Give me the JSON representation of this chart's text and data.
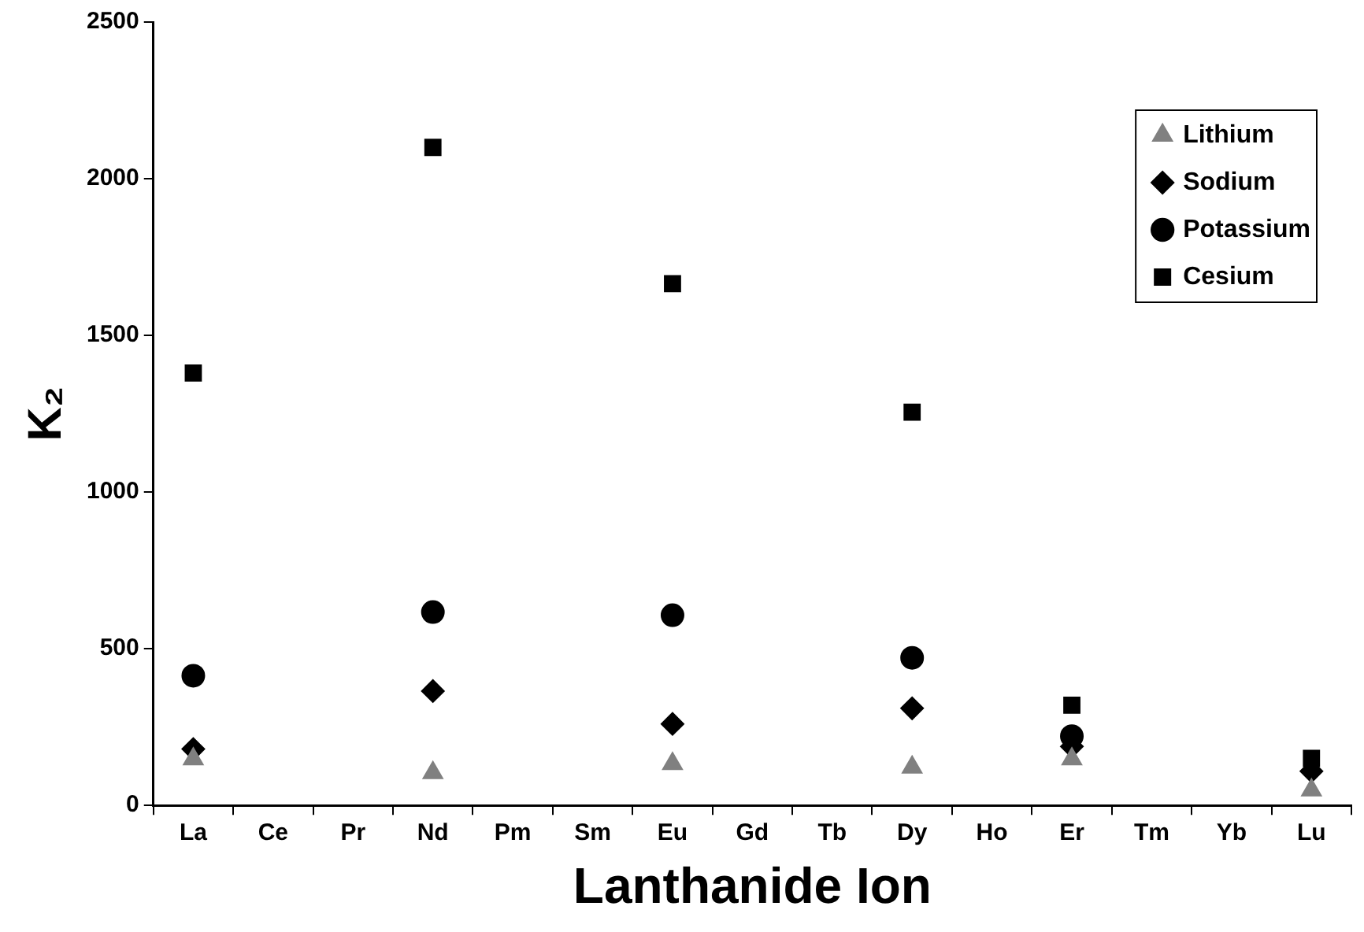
{
  "chart_data": {
    "type": "scatter",
    "xlabel": "Lanthanide Ion",
    "ylabel": "K₂",
    "categories": [
      "La",
      "Ce",
      "Pr",
      "Nd",
      "Pm",
      "Sm",
      "Eu",
      "Gd",
      "Tb",
      "Dy",
      "Ho",
      "Er",
      "Tm",
      "Yb",
      "Lu"
    ],
    "ylim": [
      0,
      2500
    ],
    "yticks": [
      0,
      500,
      1000,
      1500,
      2000,
      2500
    ],
    "grid": false,
    "legend": "top right",
    "series": [
      {
        "name": "Lithium",
        "color": "#808080",
        "marker": "triangle",
        "values": [
          148,
          null,
          null,
          104,
          null,
          null,
          133,
          null,
          null,
          122,
          null,
          148,
          null,
          null,
          49
        ]
      },
      {
        "name": "Sodium",
        "color": "#000000",
        "marker": "diamond",
        "values": [
          180,
          null,
          null,
          365,
          null,
          null,
          260,
          null,
          null,
          310,
          null,
          188,
          null,
          null,
          109
        ]
      },
      {
        "name": "Potassium",
        "color": "#000000",
        "marker": "circle",
        "values": [
          414,
          null,
          null,
          617,
          null,
          null,
          607,
          null,
          null,
          471,
          null,
          221,
          null,
          null,
          null
        ]
      },
      {
        "name": "Cesium",
        "color": "#000000",
        "marker": "square",
        "values": [
          1380,
          null,
          null,
          2100,
          null,
          null,
          1665,
          null,
          null,
          1255,
          null,
          320,
          null,
          null,
          150
        ]
      }
    ]
  }
}
